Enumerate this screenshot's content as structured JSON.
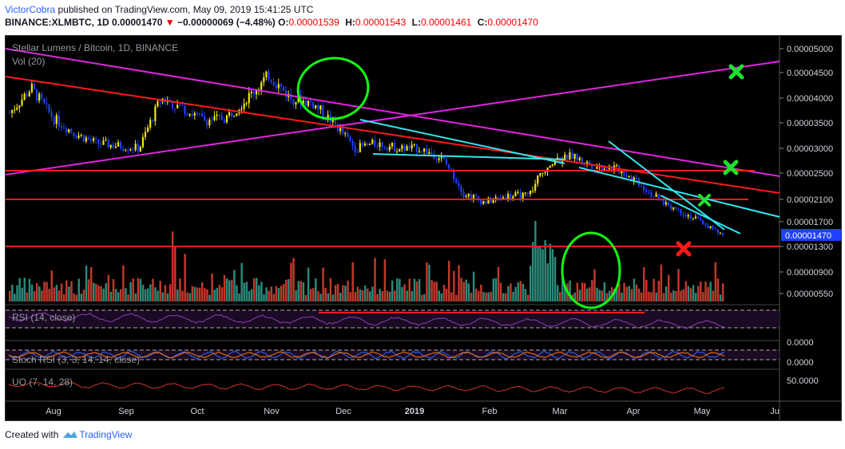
{
  "header": {
    "user": "VictorCobra",
    "published": "published on TradingView.com, May 09, 2019 15:41:25 UTC"
  },
  "quote": {
    "symbol": "BINANCE:XLMBTC, 1D",
    "price": "0.00001470",
    "arrow": "▼",
    "change": "−0.00000069 (−4.48%)",
    "o_label": "O:",
    "o": "0.00001539",
    "h_label": "H:",
    "h": "0.00001543",
    "l_label": "L:",
    "l": "0.00001461",
    "c_label": "C:",
    "c": "0.00001470"
  },
  "chart_title": "Stellar Lumens / Bitcoin, 1D, BINANCE",
  "indicators": {
    "vol": "Vol (20)",
    "rsi": "RSI (14, close)",
    "stoch": "Stoch RSI (3, 3, 14, 14, close)",
    "uo": "UO (7, 14, 28)"
  },
  "price_axis": [
    "0.00005000",
    "0.00004500",
    "0.00004000",
    "0.00003500",
    "0.00003000",
    "0.00002500",
    "0.00002100",
    "0.00001700",
    "0.00001300",
    "0.00000900",
    "0.00000550"
  ],
  "last_price_tag": "0.00001470",
  "indicator_axis": {
    "rsi": "0.0000",
    "stoch": "0.0000",
    "uo": "50.0000"
  },
  "time_axis": [
    "Aug",
    "Sep",
    "Oct",
    "Nov",
    "Dec",
    "2019",
    "Feb",
    "Mar",
    "Apr",
    "May",
    "Ju"
  ],
  "colors": {
    "background": "#000000",
    "up": "#f5e90a",
    "down": "#1e40ff",
    "vol_up": "#2a8a7a",
    "vol_down": "#c0392b",
    "trend_red": "#ff1a1a",
    "trend_magenta": "#e024e0",
    "trend_cyan": "#33e6f0",
    "circle_green": "#10ff10",
    "x_green": "#20e030",
    "x_red": "#ff1a1a"
  },
  "chart_data": {
    "type": "line",
    "title": "Stellar Lumens / Bitcoin, 1D, BINANCE",
    "x": [
      "Jul 20",
      "Aug 1",
      "Aug 10",
      "Aug 20",
      "Sep 1",
      "Sep 10",
      "Sep 20",
      "Oct 1",
      "Oct 10",
      "Oct 20",
      "Nov 1",
      "Nov 10",
      "Nov 18",
      "Nov 25",
      "Dec 1",
      "Dec 5",
      "Dec 10",
      "Dec 20",
      "Jan 1",
      "Jan 10",
      "Jan 20",
      "Feb 1",
      "Feb 10",
      "Feb 20",
      "Mar 1",
      "Mar 8",
      "Mar 15",
      "Mar 25",
      "Apr 1",
      "Apr 10",
      "Apr 20",
      "Apr 27",
      "May 1",
      "May 9"
    ],
    "series": [
      {
        "values": [
          3.7e-05,
          4.2e-05,
          3.6e-05,
          3.3e-05,
          3.1e-05,
          3.05e-05,
          3e-05,
          4e-05,
          3.8e-05,
          3.55e-05,
          3.6e-05,
          4e-05,
          4.45e-05,
          4e-05,
          3.9e-05,
          3.5e-05,
          3e-05,
          3.1e-05,
          3e-05,
          3e-05,
          2.8e-05,
          2.2e-05,
          2.05e-05,
          2.15e-05,
          2.15e-05,
          2.7e-05,
          2.85e-05,
          2.65e-05,
          2.6e-05,
          2.4e-05,
          2.1e-05,
          1.9e-05,
          1.7e-05,
          1.47e-05
        ]
      }
    ],
    "ylim": [
      5.5e-06,
      5e-05
    ],
    "grid": false
  }
}
